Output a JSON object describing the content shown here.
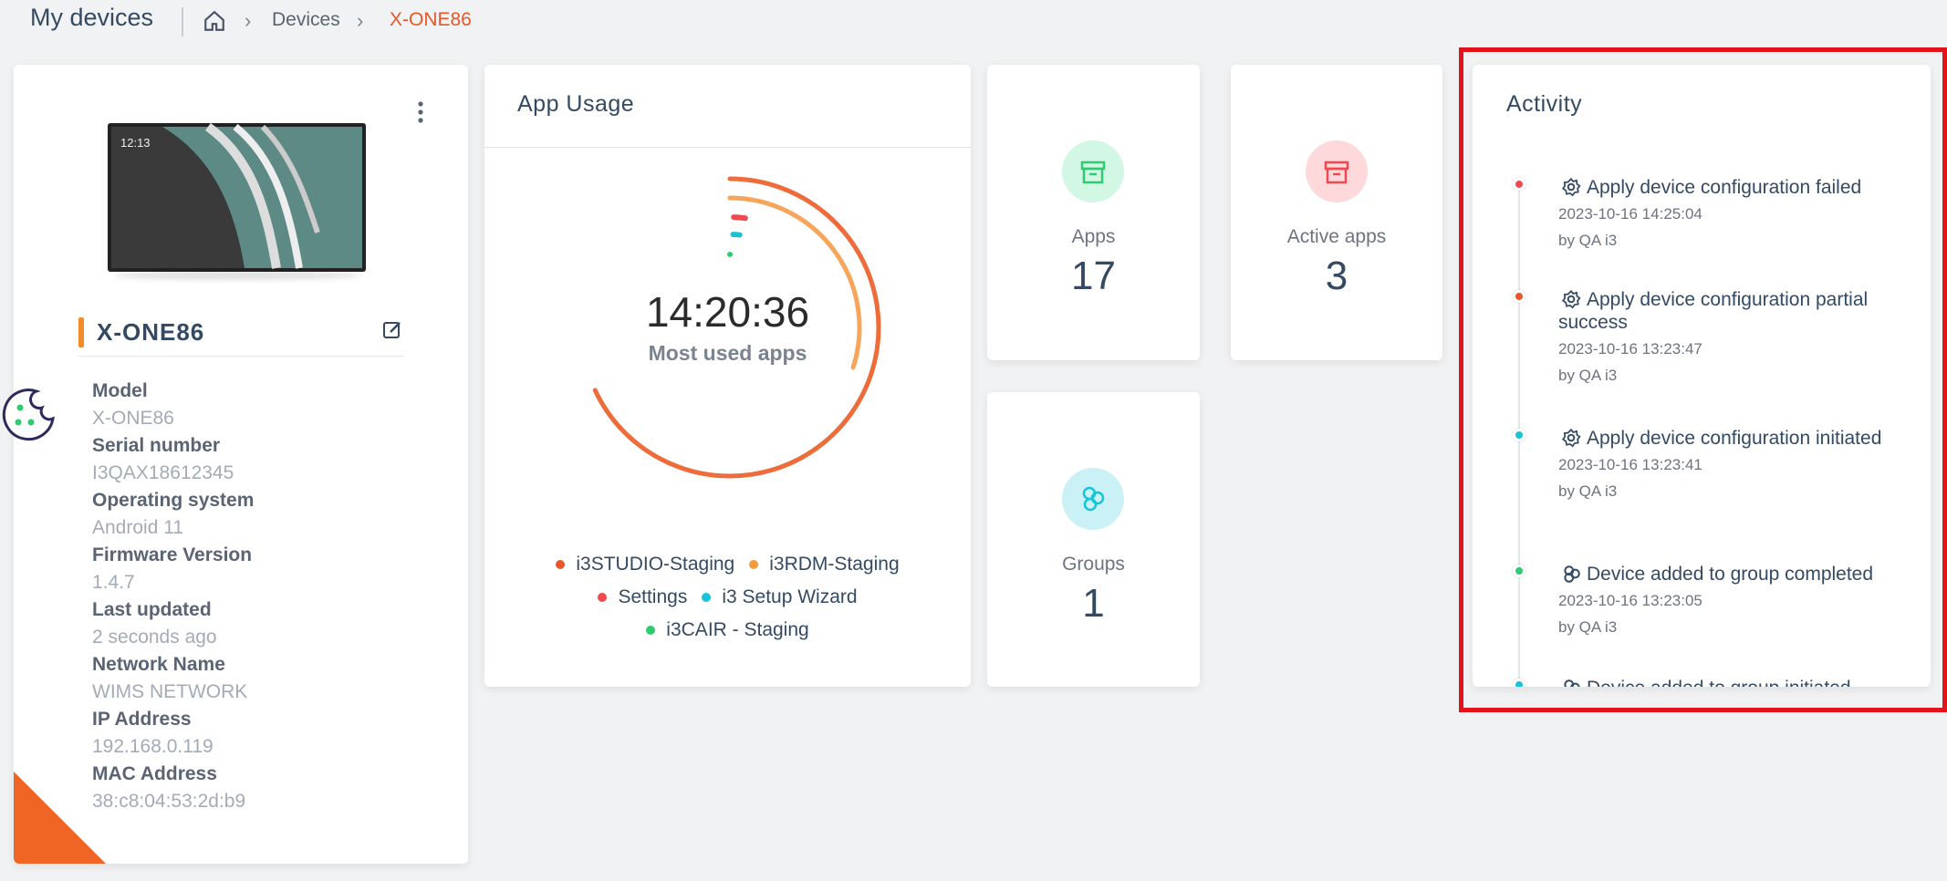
{
  "header": {
    "title": "My devices",
    "breadcrumb": [
      "Devices",
      "X-ONE86"
    ]
  },
  "device": {
    "name": "X-ONE86",
    "screen_time": "12:13",
    "details": [
      {
        "label": "Model",
        "value": "X-ONE86"
      },
      {
        "label": "Serial number",
        "value": "I3QAX18612345"
      },
      {
        "label": "Operating system",
        "value": "Android 11"
      },
      {
        "label": "Firmware Version",
        "value": "1.4.7"
      },
      {
        "label": "Last updated",
        "value": "2 seconds ago"
      },
      {
        "label": "Network Name",
        "value": "WIMS NETWORK"
      },
      {
        "label": "IP Address",
        "value": "192.168.0.119"
      },
      {
        "label": "MAC Address",
        "value": "38:c8:04:53:2d:b9"
      }
    ]
  },
  "app_usage": {
    "title": "App Usage",
    "time": "14:20:36",
    "caption": "Most used apps",
    "legend": [
      {
        "name": "i3STUDIO-Staging",
        "color": "#e8562a"
      },
      {
        "name": "i3RDM-Staging",
        "color": "#f39a3b"
      },
      {
        "name": "Settings",
        "color": "#f0484f"
      },
      {
        "name": "i3 Setup Wizard",
        "color": "#17c3d6"
      },
      {
        "name": "i3CAIR - Staging",
        "color": "#2ecc71"
      }
    ]
  },
  "stats": [
    {
      "label": "Apps",
      "value": "17"
    },
    {
      "label": "Active apps",
      "value": "3"
    },
    {
      "label": "Groups",
      "value": "1"
    }
  ],
  "activity": {
    "title": "Activity",
    "items": [
      {
        "title": "Apply device configuration failed",
        "date": "2023-10-16 14:25:04",
        "by": "by QA i3",
        "color": "#f0484f",
        "icon": "gear"
      },
      {
        "title": "Apply device configuration partial success",
        "date": "2023-10-16 13:23:47",
        "by": "by QA i3",
        "color": "#e8562a",
        "icon": "gear"
      },
      {
        "title": "Apply device configuration initiated",
        "date": "2023-10-16 13:23:41",
        "by": "by QA i3",
        "color": "#17c3d6",
        "icon": "gear"
      },
      {
        "title": "Device added to group completed",
        "date": "2023-10-16 13:23:05",
        "by": "by QA i3",
        "color": "#2ecc71",
        "icon": "group"
      },
      {
        "title": "Device added to group initiated",
        "color": "#17c3d6",
        "icon": "group"
      }
    ]
  }
}
